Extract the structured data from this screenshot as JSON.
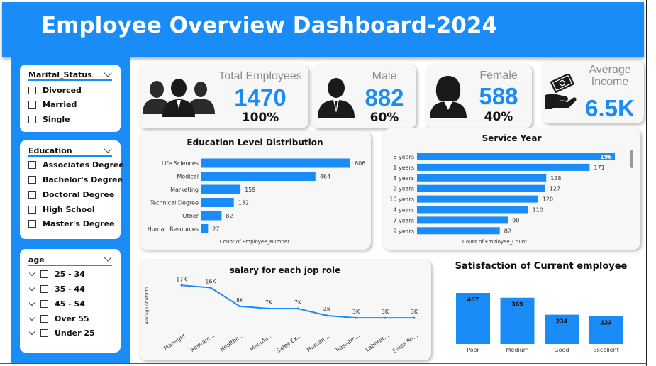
{
  "header": {
    "title": "Employee Overview Dashboard-2024"
  },
  "slicers": {
    "marital": {
      "title": "Marital_Status",
      "items": [
        "Divorced",
        "Married",
        "Single"
      ]
    },
    "education": {
      "title": "Education",
      "items": [
        "Associates Degree",
        "Bachelor's Degree",
        "Doctoral Degree",
        "High School",
        "Master's Degree"
      ]
    },
    "age": {
      "title": "age",
      "items": [
        "25 - 34",
        "35 - 44",
        "45 - 54",
        "Over 55",
        "Under 25"
      ]
    }
  },
  "kpis": {
    "total": {
      "label": "Total Employees",
      "value": "1470",
      "pct": "100%"
    },
    "male": {
      "label": "Male",
      "value": "882",
      "pct": "60%"
    },
    "female": {
      "label": "Female",
      "value": "588",
      "pct": "40%"
    },
    "income": {
      "label_line1": "Average",
      "label_line2": "Income",
      "value": "6.5K"
    }
  },
  "colors": {
    "accent": "#1a8cf7"
  },
  "chart_data": [
    {
      "id": "education",
      "type": "bar",
      "orientation": "horizontal",
      "title": "Education Level Distribution",
      "xlabel": "Count of Employee_Number",
      "categories": [
        "Life Sciences",
        "Medical",
        "Marketing",
        "Technical Degree",
        "Other",
        "Human Resources"
      ],
      "values": [
        606,
        464,
        159,
        132,
        82,
        27
      ],
      "data_labels": [
        "606",
        "464",
        "159",
        "132",
        "82",
        "27"
      ],
      "xlim": [
        0,
        606
      ]
    },
    {
      "id": "service",
      "type": "bar",
      "orientation": "horizontal",
      "title": "Service Year",
      "xlabel": "Count of Employee_Count",
      "categories": [
        "5 years",
        "1 years",
        "3 years",
        "2 years",
        "10 years",
        "4 years",
        "7 years",
        "9 years"
      ],
      "values": [
        196,
        171,
        128,
        127,
        120,
        110,
        90,
        82
      ],
      "data_labels": [
        "196",
        "171",
        "128",
        "127",
        "120",
        "110",
        "90",
        "82"
      ],
      "xlim": [
        0,
        196
      ]
    },
    {
      "id": "salary",
      "type": "line",
      "title": "salary for each jop role",
      "ylabel": "Average of Month...",
      "categories": [
        "Manager",
        "Researc...",
        "Healthc...",
        "Manufa...",
        "Sales Ex...",
        "Human ...",
        "Researc...",
        "Laborat...",
        "Sales Re..."
      ],
      "values": [
        17000,
        16000,
        8000,
        7000,
        7000,
        4000,
        3000,
        3000,
        3000
      ],
      "data_labels": [
        "17K",
        "16K",
        "8K",
        "7K",
        "7K",
        "4K",
        "3K",
        "3K",
        "3K"
      ],
      "ylim": [
        0,
        18000
      ]
    },
    {
      "id": "satisfaction",
      "type": "bar",
      "orientation": "vertical",
      "title": "Satisfaction of Current employee",
      "categories": [
        "Poor",
        "Medium",
        "Good",
        "Excellent"
      ],
      "values": [
        407,
        369,
        234,
        223
      ],
      "data_labels": [
        "407",
        "369",
        "234",
        "223"
      ],
      "ylim": [
        0,
        407
      ]
    }
  ]
}
